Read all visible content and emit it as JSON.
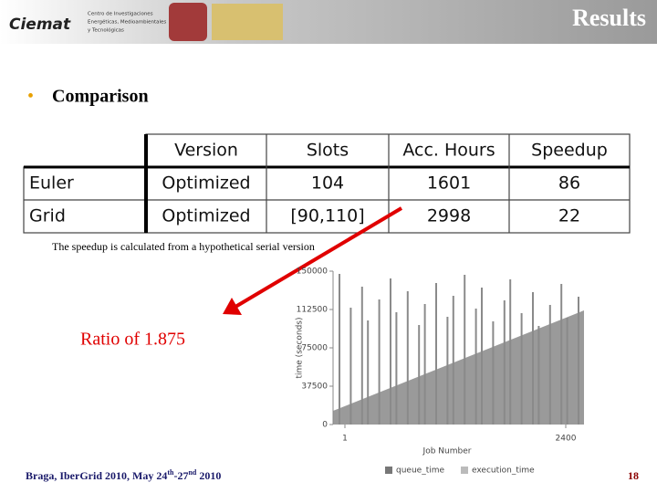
{
  "header": {
    "logo_text": "Ciemat",
    "logo_caption": [
      "Centro de Investigaciones",
      "Energéticas, Medioambientales",
      "y Tecnológicas"
    ],
    "title": "Results"
  },
  "bullet": "Comparison",
  "table": {
    "header": [
      "Version",
      "Slots",
      "Acc. Hours",
      "Speedup"
    ],
    "rows": [
      [
        "Euler",
        "Optimized",
        "104",
        "1601",
        "86"
      ],
      [
        "Grid",
        "Optimized",
        "[90,110]",
        "2998",
        "22"
      ]
    ]
  },
  "note": "The speedup is calculated from a hypothetical serial version",
  "ratio": "Ratio of 1.875",
  "chart_data": {
    "type": "area",
    "y_label": "time (seconds)",
    "x_label": "Job Number",
    "ylim": [
      0,
      150000
    ],
    "yticks": [
      0,
      37500,
      75000,
      112500,
      150000
    ],
    "xticks": [
      1,
      2400
    ],
    "legend": [
      "queue_time",
      "execution_time"
    ]
  },
  "footer": {
    "parts": [
      "Braga, IberGrid 2010, May 24",
      "th",
      "-27",
      "nd",
      " 2010"
    ],
    "page": "18"
  }
}
